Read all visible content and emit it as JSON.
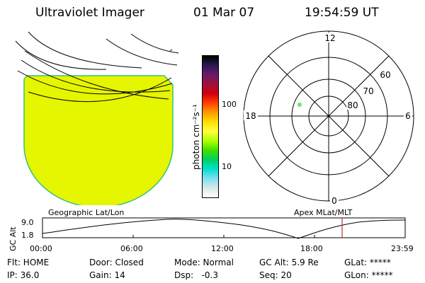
{
  "header": {
    "instrument": "Ultraviolet Imager",
    "date": "01 Mar 07",
    "time": "19:54:59 UT"
  },
  "colorbar": {
    "label": "photon cm⁻²s⁻¹",
    "ticks": [
      "100",
      "10"
    ],
    "colors": [
      "#000000",
      "#2a1850",
      "#6a1a6a",
      "#a0103a",
      "#d00010",
      "#ff4000",
      "#ff9a00",
      "#ffe000",
      "#ffff40",
      "#b0ff00",
      "#40e000",
      "#00d060",
      "#00e0d0",
      "#80e0f0",
      "#d8e8e8",
      "#ffffff"
    ]
  },
  "polar": {
    "mlt_labels": [
      "12",
      "18",
      "6",
      "0"
    ],
    "lat_labels": [
      "60",
      "70",
      "80"
    ]
  },
  "timeline": {
    "left_label": "Geographic Lat/Lon",
    "right_label": "Apex MLat/MLT",
    "axis_label": "GC Alt",
    "y_ticks": [
      "9.0",
      "1.8"
    ],
    "x_ticks": [
      "00:00",
      "06:00",
      "12:00",
      "18:00",
      "23:59"
    ]
  },
  "status": {
    "flt": "Flt: HOME",
    "ip": "IP: 36.0",
    "door": "Door: Closed",
    "gain": "Gain: 14",
    "mode": "Mode: Normal",
    "dsp": "Dsp:   -0.3",
    "gcalt": "GC Alt: 5.9 Re",
    "seq": "Seq: 20",
    "glat": "GLat: *****",
    "glon": "GLon: *****"
  },
  "colors": {
    "image_fill": "#e6f500",
    "image_edge": "#34c47a",
    "time_marker": "#c03030",
    "spot": "#6ee66e"
  }
}
